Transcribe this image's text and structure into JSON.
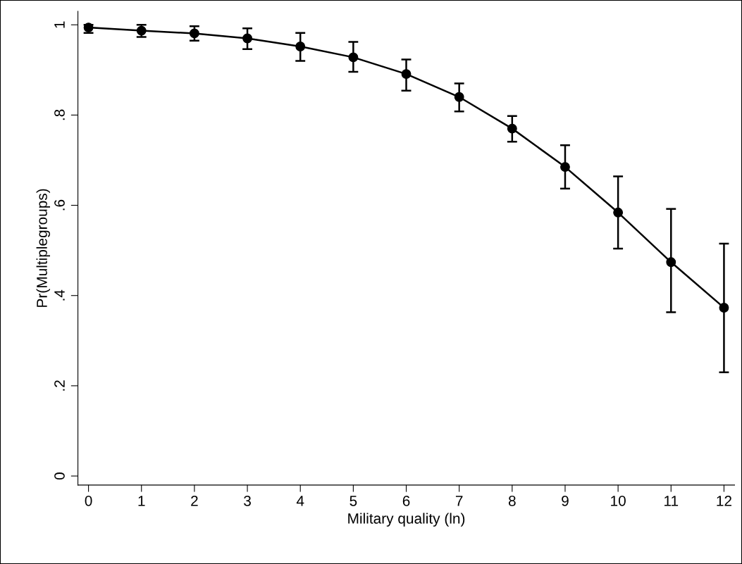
{
  "chart_data": {
    "type": "line",
    "xlabel": "Military quality (ln)",
    "ylabel": "Pr(Multiplegroups)",
    "x": [
      0,
      1,
      2,
      3,
      4,
      5,
      6,
      7,
      8,
      9,
      10,
      11,
      12
    ],
    "series": [
      {
        "color": "#000000",
        "values": [
          0.994,
          0.987,
          0.981,
          0.97,
          0.952,
          0.928,
          0.891,
          0.84,
          0.77,
          0.685,
          0.584,
          0.474,
          0.373
        ],
        "errors": [
          [
            0.982,
            1.0
          ],
          [
            0.973,
            1.0
          ],
          [
            0.965,
            0.997
          ],
          [
            0.946,
            0.992
          ],
          [
            0.92,
            0.982
          ],
          [
            0.896,
            0.962
          ],
          [
            0.854,
            0.923
          ],
          [
            0.808,
            0.87
          ],
          [
            0.741,
            0.798
          ],
          [
            0.637,
            0.733
          ],
          [
            0.504,
            0.664
          ],
          [
            0.363,
            0.592
          ],
          [
            0.23,
            0.515
          ]
        ]
      }
    ],
    "xlim": [
      -0.2,
      12.2
    ],
    "ylim": [
      -0.02,
      1.03
    ],
    "xticks": [
      0,
      1,
      2,
      3,
      4,
      5,
      6,
      7,
      8,
      9,
      10,
      11,
      12
    ],
    "yticks": [
      {
        "value": 0,
        "label": "0"
      },
      {
        "value": 0.2,
        "label": ".2"
      },
      {
        "value": 0.4,
        "label": ".4"
      },
      {
        "value": 0.6,
        "label": ".6"
      },
      {
        "value": 0.8,
        "label": ".8"
      },
      {
        "value": 1,
        "label": "1"
      }
    ],
    "marker": "circle",
    "line_style": "solid",
    "grid": false,
    "legend": false
  }
}
